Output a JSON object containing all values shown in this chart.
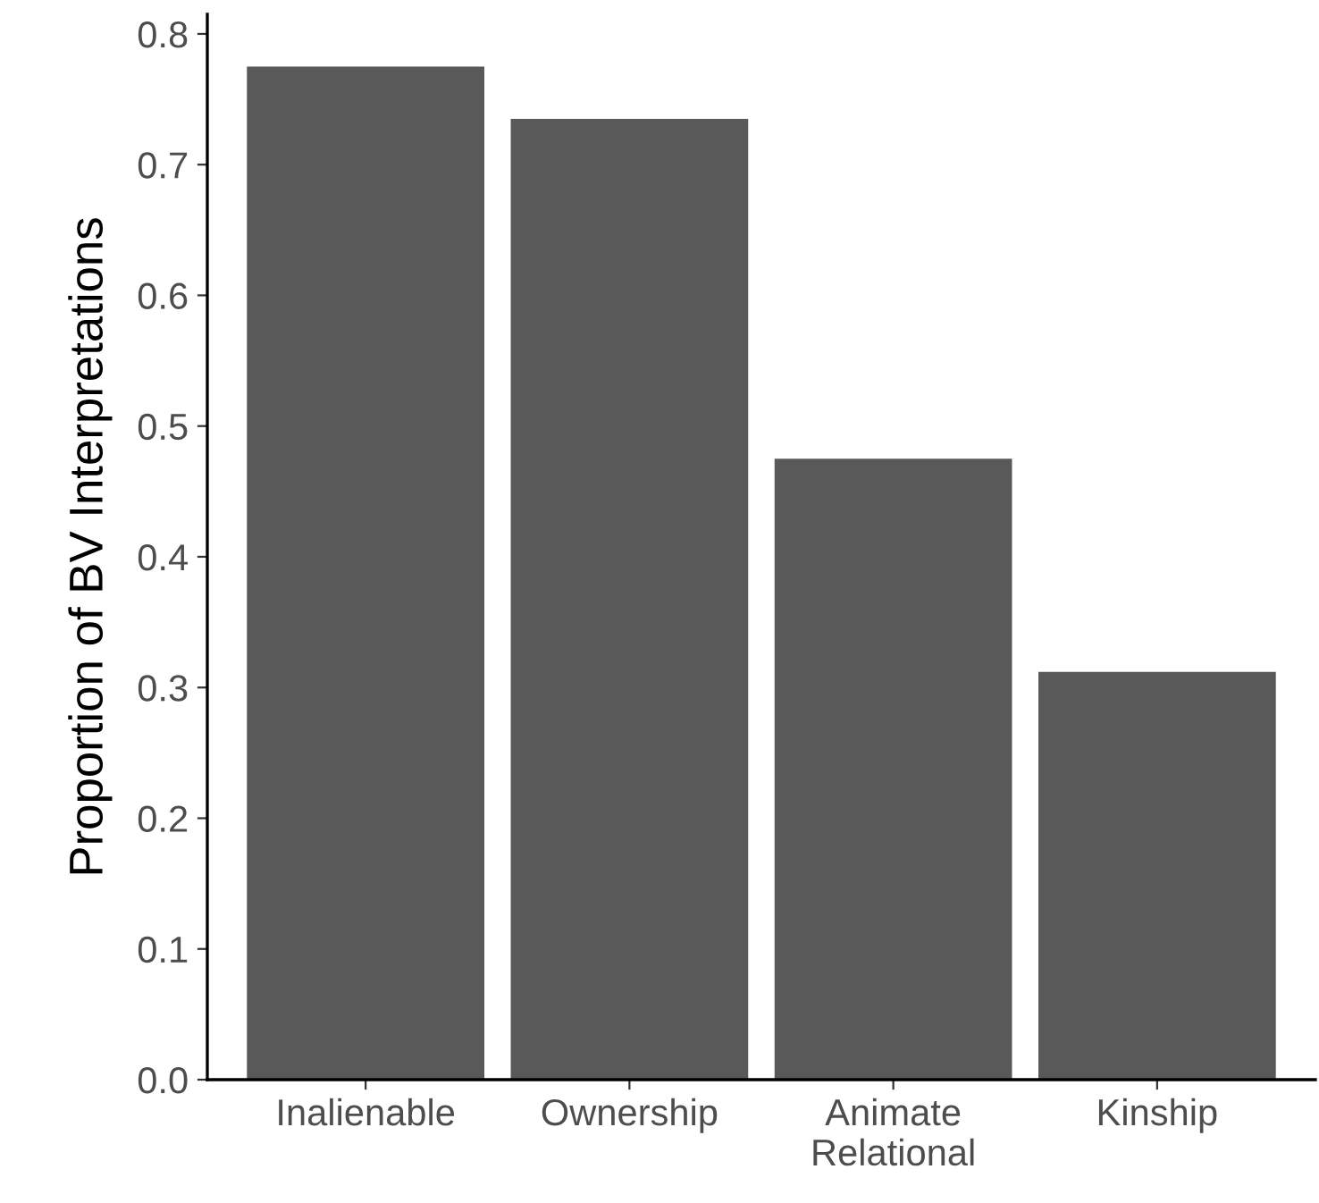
{
  "chart_data": {
    "type": "bar",
    "ylabel": "Proportion of BV Interpretations",
    "categories": [
      "Inalienable",
      "Ownership",
      "Animate\nRelational",
      "Kinship"
    ],
    "values": [
      0.775,
      0.735,
      0.475,
      0.312
    ],
    "color": "#595959",
    "ylim": [
      0,
      0.815
    ],
    "yticks": [
      {
        "value": 0,
        "label": "0.0"
      },
      0.1,
      0.2,
      0.3,
      0.4,
      0.5,
      0.6,
      0.7,
      0.8
    ],
    "grid": false
  }
}
